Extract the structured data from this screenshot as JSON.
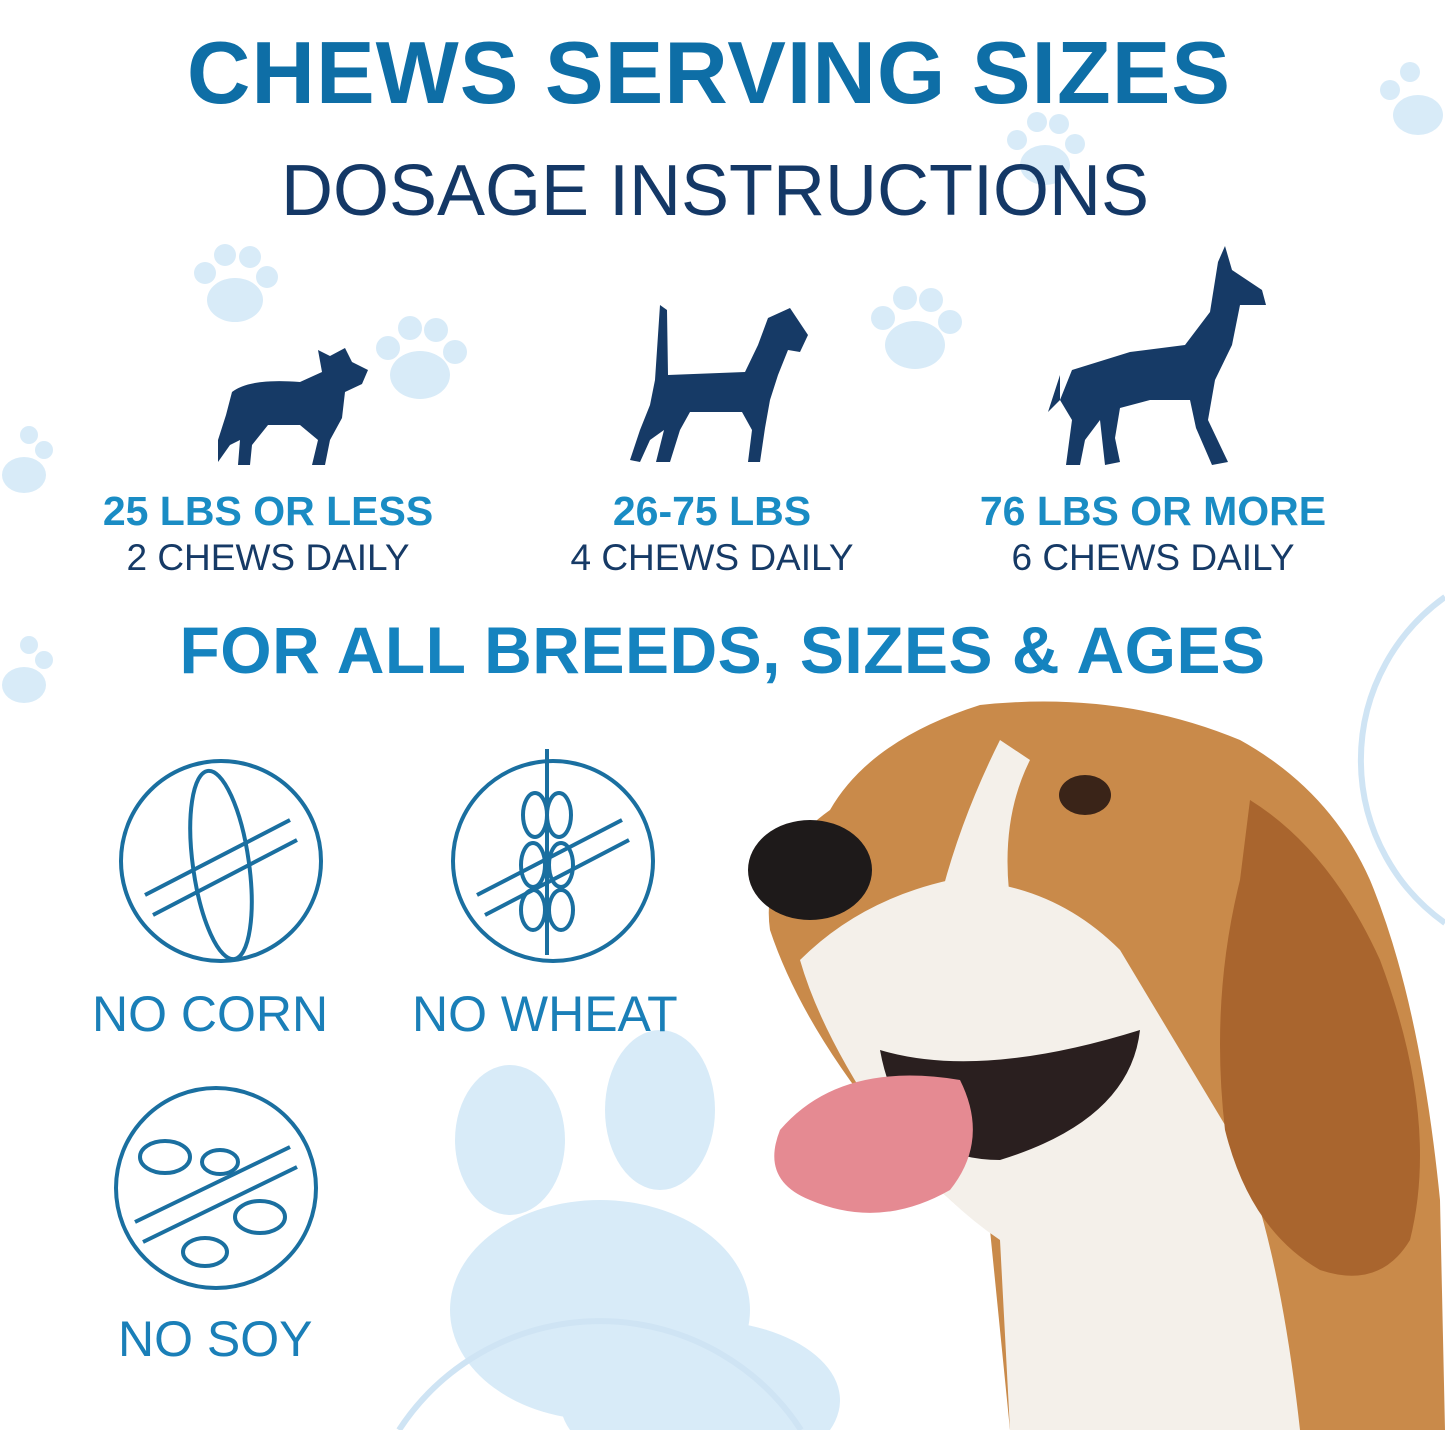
{
  "header": {
    "title": "CHEWS SERVING SIZES",
    "subtitle": "DOSAGE INSTRUCTIONS"
  },
  "dosage_tiers": [
    {
      "icon": "small-dog-silhouette-icon",
      "weight": "25 LBS OR LESS",
      "dose": "2 CHEWS DAILY"
    },
    {
      "icon": "medium-dog-silhouette-icon",
      "weight": "26-75 LBS",
      "dose": "4 CHEWS DAILY"
    },
    {
      "icon": "large-dog-silhouette-icon",
      "weight": "76 LBS OR MORE",
      "dose": "6 CHEWS DAILY"
    }
  ],
  "tagline": "FOR ALL BREEDS, SIZES & AGES",
  "free_from": [
    {
      "icon": "no-corn-icon",
      "label": "NO CORN"
    },
    {
      "icon": "no-wheat-icon",
      "label": "NO WHEAT"
    },
    {
      "icon": "no-soy-icon",
      "label": "NO SOY"
    }
  ],
  "colors": {
    "title_blue": "#0e6ea6",
    "accent_blue": "#1a8cc4",
    "navy": "#163a66",
    "paw_light": "#d6eaf7"
  }
}
